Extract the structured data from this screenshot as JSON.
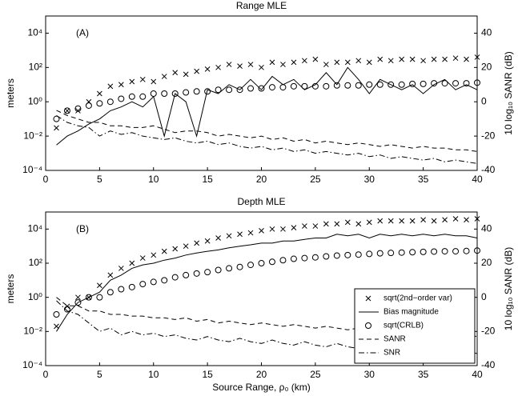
{
  "chart_data": [
    {
      "type": "line",
      "title": "Range MLE",
      "annotation": "(A)",
      "ylabel": "meters",
      "y2label": "10 log₁₀ SANR (dB)",
      "log_y": true,
      "grid": false,
      "color": "#000000",
      "x": [
        1,
        2,
        3,
        4,
        5,
        6,
        7,
        8,
        9,
        10,
        11,
        12,
        13,
        14,
        15,
        16,
        17,
        18,
        19,
        20,
        21,
        22,
        23,
        24,
        25,
        26,
        27,
        28,
        29,
        30,
        31,
        32,
        33,
        34,
        35,
        36,
        37,
        38,
        39,
        40
      ],
      "xlim": [
        0,
        40
      ],
      "xticks": [
        0,
        5,
        10,
        15,
        20,
        25,
        30,
        35,
        40
      ],
      "ylim": [
        0.0001,
        100000
      ],
      "yticks": [
        {
          "value": 0.0001,
          "label": "10⁻⁴"
        },
        {
          "value": 0.01,
          "label": "10⁻²"
        },
        {
          "value": 1,
          "label": "10⁰"
        },
        {
          "value": 100,
          "label": "10²"
        },
        {
          "value": 10000,
          "label": "10⁴"
        }
      ],
      "y2lim": [
        -40,
        50
      ],
      "y2ticks": [
        -40,
        -20,
        0,
        20,
        40
      ],
      "series": [
        {
          "marker": "x",
          "values": [
            0.03,
            0.3,
            0.3,
            1,
            3,
            8,
            10,
            15,
            20,
            15,
            30,
            50,
            40,
            60,
            80,
            100,
            150,
            120,
            150,
            100,
            200,
            150,
            200,
            250,
            300,
            150,
            200,
            200,
            250,
            200,
            300,
            250,
            300,
            300,
            250,
            300,
            300,
            350,
            300,
            400
          ]
        },
        {
          "dash": "solid",
          "values": [
            0.003,
            0.01,
            0.02,
            0.05,
            0.1,
            0.3,
            0.5,
            1,
            0.5,
            2,
            0.01,
            3,
            1,
            0.01,
            5,
            3,
            10,
            5,
            20,
            5,
            30,
            10,
            20,
            5,
            10,
            50,
            10,
            100,
            20,
            3,
            20,
            10,
            5,
            10,
            3,
            10,
            20,
            5,
            10,
            5
          ]
        },
        {
          "marker": "o",
          "values": [
            0.1,
            0.3,
            0.4,
            0.6,
            0.8,
            1,
            1.5,
            2,
            2,
            3,
            3,
            3,
            3.5,
            4,
            4,
            5,
            5,
            5,
            6,
            6,
            7,
            7,
            8,
            8,
            8,
            8,
            9,
            9,
            9,
            10,
            10,
            10,
            10,
            11,
            11,
            12,
            12,
            12,
            12,
            13
          ]
        },
        {
          "dash": "dashed",
          "axis": "y2",
          "values": [
            -5,
            -8,
            -10,
            -12,
            -12,
            -14,
            -14,
            -15,
            -15,
            -14,
            -16,
            -18,
            -17,
            -17,
            -18,
            -20,
            -19,
            -20,
            -21,
            -20,
            -22,
            -21,
            -23,
            -22,
            -24,
            -23,
            -24,
            -25,
            -24,
            -25,
            -26,
            -25,
            -26,
            -27,
            -26,
            -27,
            -27,
            -28,
            -28,
            -29
          ]
        },
        {
          "dash": "dashdot",
          "axis": "y2",
          "values": [
            -8,
            -12,
            -14,
            -15,
            -20,
            -17,
            -19,
            -18,
            -20,
            -21,
            -22,
            -21,
            -23,
            -24,
            -23,
            -25,
            -24,
            -26,
            -27,
            -26,
            -28,
            -27,
            -29,
            -28,
            -30,
            -29,
            -30,
            -31,
            -30,
            -32,
            -31,
            -33,
            -32,
            -33,
            -34,
            -33,
            -35,
            -34,
            -35,
            -36
          ]
        }
      ]
    },
    {
      "type": "line",
      "title": "Depth MLE",
      "annotation": "(B)",
      "ylabel": "meters",
      "y2label": "10 log₁₀ SANR (dB)",
      "xlabel": "Source Range, ρ₀ (km)",
      "log_y": true,
      "grid": false,
      "color": "#000000",
      "legend": "lower right",
      "x": [
        1,
        2,
        3,
        4,
        5,
        6,
        7,
        8,
        9,
        10,
        11,
        12,
        13,
        14,
        15,
        16,
        17,
        18,
        19,
        20,
        21,
        22,
        23,
        24,
        25,
        26,
        27,
        28,
        29,
        30,
        31,
        32,
        33,
        34,
        35,
        36,
        37,
        38,
        39,
        40
      ],
      "xlim": [
        0,
        40
      ],
      "xticks": [
        0,
        5,
        10,
        15,
        20,
        25,
        30,
        35,
        40
      ],
      "ylim": [
        0.0001,
        100000
      ],
      "yticks": [
        {
          "value": 0.0001,
          "label": "10⁻⁴"
        },
        {
          "value": 0.01,
          "label": "10⁻²"
        },
        {
          "value": 1,
          "label": "10⁰"
        },
        {
          "value": 100,
          "label": "10²"
        },
        {
          "value": 10000,
          "label": "10⁴"
        }
      ],
      "y2lim": [
        -40,
        50
      ],
      "y2ticks": [
        -40,
        -20,
        0,
        20,
        40
      ],
      "series": [
        {
          "name": "sqrt(2nd−order var)",
          "marker": "x",
          "values": [
            0.02,
            0.3,
            1,
            1,
            5,
            20,
            50,
            100,
            200,
            300,
            500,
            700,
            1000,
            1500,
            2000,
            3000,
            4000,
            5000,
            6000,
            8000,
            10000,
            10000,
            12000,
            15000,
            15000,
            20000,
            20000,
            25000,
            20000,
            25000,
            30000,
            30000,
            30000,
            30000,
            35000,
            30000,
            35000,
            40000,
            35000,
            40000
          ]
        },
        {
          "name": "Bias magnitude",
          "dash": "solid",
          "values": [
            0.01,
            0.1,
            0.5,
            1,
            2,
            10,
            20,
            50,
            80,
            100,
            150,
            200,
            300,
            400,
            500,
            600,
            800,
            1000,
            1200,
            1500,
            1500,
            2000,
            2000,
            2500,
            3000,
            3000,
            5000,
            4000,
            5000,
            3000,
            5000,
            4000,
            5000,
            4000,
            5000,
            4000,
            5000,
            4000,
            4000,
            3000
          ]
        },
        {
          "name": "sqrt(CRLB)",
          "marker": "o",
          "values": [
            0.1,
            0.2,
            0.5,
            1,
            1,
            2,
            3,
            4,
            6,
            8,
            10,
            15,
            20,
            25,
            30,
            40,
            50,
            60,
            80,
            100,
            120,
            150,
            180,
            200,
            220,
            250,
            280,
            300,
            320,
            350,
            380,
            400,
            420,
            440,
            460,
            480,
            500,
            500,
            520,
            550
          ]
        },
        {
          "name": "SANR",
          "dash": "dashed",
          "axis": "y2",
          "values": [
            0,
            -5,
            -5,
            -8,
            -8,
            -10,
            -10,
            -11,
            -11,
            -12,
            -12,
            -13,
            -12,
            -14,
            -13,
            -15,
            -14,
            -15,
            -16,
            -15,
            -16,
            -17,
            -16,
            -17,
            -18,
            -17,
            -18,
            -19,
            -18,
            -19,
            -20,
            -19,
            -20,
            -21,
            -20,
            -21,
            -21,
            -22,
            -22,
            -23
          ]
        },
        {
          "name": "SNR",
          "dash": "dashdot",
          "axis": "y2",
          "values": [
            -2,
            -8,
            -10,
            -15,
            -20,
            -18,
            -22,
            -20,
            -22,
            -21,
            -23,
            -22,
            -24,
            -25,
            -23,
            -25,
            -26,
            -24,
            -26,
            -27,
            -25,
            -27,
            -28,
            -26,
            -28,
            -29,
            -27,
            -29,
            -30,
            -28,
            -30,
            -31,
            -29,
            -31,
            -32,
            -30,
            -32,
            -33,
            -31,
            -33
          ]
        }
      ]
    }
  ]
}
